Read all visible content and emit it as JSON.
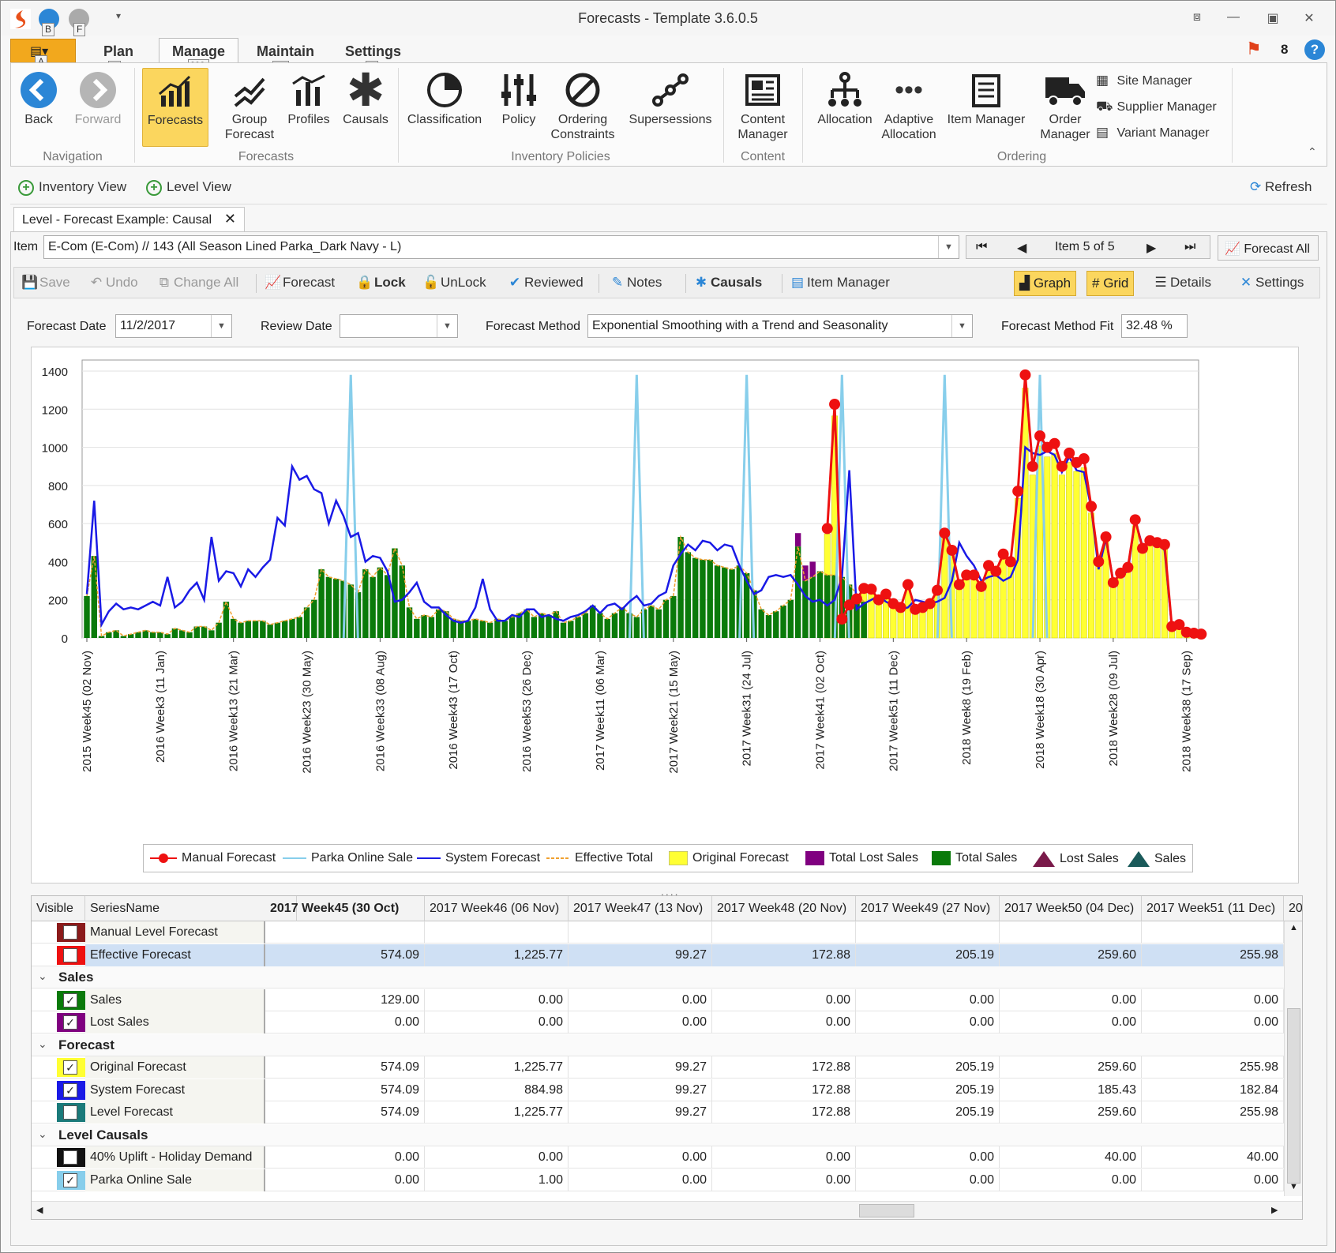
{
  "window": {
    "title": "Forecasts - Template 3.6.0.5",
    "notification_count": "8"
  },
  "quick_access": {
    "keytips": [
      "B",
      "F",
      "A"
    ],
    "file_keytip": "A"
  },
  "ribbon_tabs": [
    {
      "label": "Plan",
      "keytip": "P"
    },
    {
      "label": "Manage",
      "keytip": "MA"
    },
    {
      "label": "Maintain",
      "keytip": "MI"
    },
    {
      "label": "Settings",
      "keytip": "S"
    }
  ],
  "ribbon": {
    "navigation": {
      "group": "Navigation",
      "back": "Back",
      "forward": "Forward"
    },
    "forecasts": {
      "group": "Forecasts",
      "forecasts": "Forecasts",
      "group_forecast_1": "Group",
      "group_forecast_2": "Forecast",
      "profiles": "Profiles",
      "causals": "Causals"
    },
    "inventory": {
      "group": "Inventory Policies",
      "classification": "Classification",
      "policy": "Policy",
      "ordering_1": "Ordering",
      "ordering_2": "Constraints",
      "supersessions": "Supersessions"
    },
    "content": {
      "group": "Content",
      "cm_1": "Content",
      "cm_2": "Manager"
    },
    "ordering": {
      "group": "Ordering",
      "allocation": "Allocation",
      "adaptive_1": "Adaptive",
      "adaptive_2": "Allocation",
      "item_manager": "Item Manager",
      "order_1": "Order",
      "order_2": "Manager",
      "site_manager": "Site Manager",
      "supplier_manager": "Supplier Manager",
      "variant_manager": "Variant Manager"
    }
  },
  "viewbar": {
    "inventory_view": "Inventory View",
    "level_view": "Level View",
    "refresh": "Refresh"
  },
  "doc_tab": "Level - Forecast Example: Causal",
  "item": {
    "label": "Item",
    "value": "E-Com (E-Com) // 143 (All Season Lined Parka_Dark Navy - L)",
    "position": "Item 5 of 5",
    "forecast_all": "Forecast All"
  },
  "toolbar": {
    "save": "Save",
    "undo": "Undo",
    "change_all": "Change All",
    "forecast": "Forecast",
    "lock": "Lock",
    "unlock": "UnLock",
    "reviewed": "Reviewed",
    "notes": "Notes",
    "causals": "Causals",
    "item_manager": "Item Manager",
    "graph": "Graph",
    "grid": "Grid",
    "details": "Details",
    "settings": "Settings"
  },
  "params": {
    "forecast_date_label": "Forecast Date",
    "forecast_date": "11/2/2017",
    "review_date_label": "Review Date",
    "review_date": "",
    "method_label": "Forecast Method",
    "method": "Exponential Smoothing with a Trend and Seasonality",
    "fit_label": "Forecast Method Fit",
    "fit": "32.48 %"
  },
  "chart_data": {
    "type": "line",
    "title": "",
    "ylim": [
      0,
      1400
    ],
    "yticks": [
      0,
      200,
      400,
      600,
      800,
      1000,
      1200,
      1400
    ],
    "n_weeks": 152,
    "x_tick_labels": [
      "2015 Week45 (02 Nov)",
      "2016 Week3 (11 Jan)",
      "2016 Week13 (21 Mar)",
      "2016 Week23 (30 May)",
      "2016 Week33 (08 Aug)",
      "2016 Week43 (17 Oct)",
      "2016 Week53 (26 Dec)",
      "2017 Week11 (06 Mar)",
      "2017 Week21 (15 May)",
      "2017 Week31 (24 Jul)",
      "2017 Week41 (02 Oct)",
      "2017 Week51 (11 Dec)",
      "2018 Week8 (19 Feb)",
      "2018 Week18 (30 Apr)",
      "2018 Week28 (09 Jul)",
      "2018 Week38 (17 Sep)"
    ],
    "x_tick_index": [
      0,
      10,
      20,
      30,
      40,
      50,
      60,
      70,
      80,
      90,
      100,
      110,
      120,
      130,
      140,
      150
    ],
    "legend": [
      "Manual Forecast",
      "Parka Online Sale",
      "System Forecast",
      "Effective Total",
      "Original Forecast",
      "Total Lost Sales",
      "Total Sales",
      "Lost Sales",
      "Sales"
    ],
    "colors": {
      "manual": "#ee1111",
      "online_sale": "#87ceeb",
      "system": "#1a1ae6",
      "effective": "#f0a030",
      "original": "#ffff33",
      "total_lost": "#800080",
      "total_sales": "#0a7a0a",
      "lost_sales": "#7a1a4a",
      "sales": "#1a5a5a"
    },
    "series": [
      {
        "name": "Total Sales",
        "start": 0,
        "values": [
          220,
          430,
          10,
          30,
          40,
          10,
          20,
          30,
          40,
          30,
          30,
          20,
          50,
          40,
          30,
          60,
          60,
          40,
          80,
          190,
          100,
          80,
          90,
          90,
          90,
          70,
          80,
          90,
          100,
          110,
          160,
          200,
          360,
          320,
          310,
          300,
          280,
          240,
          360,
          320,
          370,
          330,
          470,
          380,
          160,
          100,
          120,
          110,
          150,
          140,
          100,
          90,
          90,
          100,
          90,
          80,
          100,
          90,
          110,
          130,
          150,
          110,
          130,
          120,
          140,
          80,
          90,
          110,
          130,
          170,
          130,
          100,
          130,
          160,
          130,
          110,
          150,
          170,
          150,
          200,
          220,
          530,
          450,
          420,
          410,
          410,
          380,
          370,
          360,
          380,
          340,
          250,
          150,
          120,
          140,
          170,
          200,
          480,
          300,
          320,
          350,
          330,
          330,
          320,
          280,
          230,
          190
        ]
      },
      {
        "name": "Total Lost Sales",
        "start": 97,
        "values": [
          70,
          80,
          80
        ]
      },
      {
        "name": "System Forecast",
        "start": 0,
        "values": [
          230,
          720,
          70,
          140,
          180,
          150,
          160,
          150,
          170,
          190,
          170,
          320,
          160,
          190,
          250,
          290,
          200,
          530,
          300,
          350,
          340,
          270,
          360,
          320,
          370,
          410,
          630,
          590,
          900,
          830,
          850,
          780,
          760,
          600,
          720,
          640,
          530,
          550,
          400,
          430,
          420,
          350,
          190,
          200,
          240,
          290,
          190,
          160,
          160,
          120,
          90,
          80,
          90,
          160,
          310,
          150,
          90,
          90,
          120,
          110,
          150,
          150,
          110,
          120,
          100,
          90,
          110,
          120,
          140,
          170,
          130,
          170,
          180,
          150,
          190,
          220,
          170,
          180,
          220,
          240,
          380,
          440,
          490,
          460,
          510,
          500,
          460,
          490,
          480,
          380,
          300,
          230,
          250,
          320,
          330,
          320,
          330,
          280,
          220,
          190,
          200,
          170,
          200,
          320,
          880,
          150,
          180,
          200,
          220,
          190,
          170,
          150,
          160,
          200,
          190,
          180,
          190,
          210,
          300,
          500,
          430,
          380,
          300,
          320,
          330,
          300,
          320,
          410,
          1000,
          970,
          960,
          980,
          960,
          870,
          950,
          880,
          870,
          680,
          360,
          520,
          300,
          330,
          350,
          620,
          480,
          500,
          500,
          460,
          50,
          60,
          30,
          30
        ]
      },
      {
        "name": "Manual Forecast",
        "start": 101,
        "values": [
          574,
          1226,
          99,
          173,
          205,
          260,
          256,
          200,
          230,
          180,
          160,
          280,
          150,
          160,
          180,
          250,
          550,
          460,
          280,
          330,
          330,
          270,
          380,
          350,
          440,
          400,
          770,
          1380,
          900,
          1060,
          1000,
          1020,
          900,
          970,
          920,
          940,
          690,
          400,
          530,
          290,
          340,
          370,
          620,
          470,
          510,
          500,
          490,
          60,
          70,
          30,
          25,
          20
        ]
      },
      {
        "name": "Parka Online Sale",
        "spikes": [
          36,
          75,
          90,
          103,
          117,
          130
        ],
        "spike_value": 1380
      }
    ]
  },
  "grid": {
    "headers": [
      "Visible",
      "SeriesName",
      "2017 Week45 (30 Oct)",
      "2017 Week46 (06 Nov)",
      "2017 Week47 (13 Nov)",
      "2017 Week48 (20 Nov)",
      "2017 Week49 (27 Nov)",
      "2017 Week50 (04 Dec)",
      "2017 Week51 (11 Dec)",
      "20"
    ],
    "rows": [
      {
        "type": "item",
        "name": "Manual Level Forecast",
        "color": "#8b1a1a",
        "checked": "",
        "values": [
          "",
          "",
          "",
          "",
          "",
          "",
          ""
        ]
      },
      {
        "type": "item",
        "name": "Effective Forecast",
        "color": "#ee1111",
        "checked": "",
        "selected": true,
        "values": [
          "574.09",
          "1,225.77",
          "99.27",
          "172.88",
          "205.19",
          "259.60",
          "255.98"
        ]
      },
      {
        "type": "cat",
        "name": "Sales"
      },
      {
        "type": "item",
        "name": "Sales",
        "color": "#0a7a0a",
        "checked": "✓",
        "values": [
          "129.00",
          "0.00",
          "0.00",
          "0.00",
          "0.00",
          "0.00",
          "0.00"
        ]
      },
      {
        "type": "item",
        "name": "Lost Sales",
        "color": "#800080",
        "checked": "✓",
        "values": [
          "0.00",
          "0.00",
          "0.00",
          "0.00",
          "0.00",
          "0.00",
          "0.00"
        ]
      },
      {
        "type": "cat",
        "name": "Forecast"
      },
      {
        "type": "item",
        "name": "Original Forecast",
        "color": "#ffff33",
        "checked": "✓",
        "values": [
          "574.09",
          "1,225.77",
          "99.27",
          "172.88",
          "205.19",
          "259.60",
          "255.98"
        ]
      },
      {
        "type": "item",
        "name": "System Forecast",
        "color": "#1a1ae6",
        "checked": "✓",
        "values": [
          "574.09",
          "884.98",
          "99.27",
          "172.88",
          "205.19",
          "185.43",
          "182.84"
        ]
      },
      {
        "type": "item",
        "name": "Level Forecast",
        "color": "#1a7a7a",
        "checked": "",
        "values": [
          "574.09",
          "1,225.77",
          "99.27",
          "172.88",
          "205.19",
          "259.60",
          "255.98"
        ]
      },
      {
        "type": "cat",
        "name": "Level Causals"
      },
      {
        "type": "item",
        "name": "40% Uplift - Holiday Demand",
        "color": "#111111",
        "checked": "",
        "values": [
          "0.00",
          "0.00",
          "0.00",
          "0.00",
          "0.00",
          "40.00",
          "40.00"
        ]
      },
      {
        "type": "item",
        "name": "Parka Online Sale",
        "color": "#87ceeb",
        "checked": "✓",
        "values": [
          "0.00",
          "1.00",
          "0.00",
          "0.00",
          "0.00",
          "0.00",
          "0.00"
        ]
      }
    ]
  }
}
